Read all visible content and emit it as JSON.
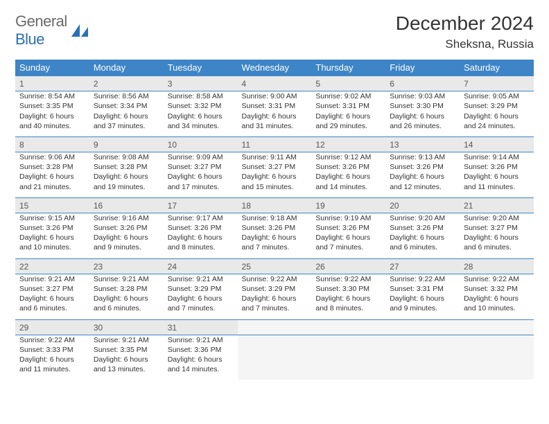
{
  "logo": {
    "text1": "General",
    "text2": "Blue",
    "shape_color": "#2a6fb5"
  },
  "title": "December 2024",
  "location": "Sheksna, Russia",
  "colors": {
    "header_bg": "#3d85c6",
    "header_text": "#ffffff",
    "daynum_bg": "#e9e9e9",
    "border": "#3d85c6",
    "empty_bg": "#f5f5f5"
  },
  "day_headers": [
    "Sunday",
    "Monday",
    "Tuesday",
    "Wednesday",
    "Thursday",
    "Friday",
    "Saturday"
  ],
  "weeks": [
    [
      {
        "n": "1",
        "sunrise": "8:54 AM",
        "sunset": "3:35 PM",
        "dl1": "Daylight: 6 hours",
        "dl2": "and 40 minutes."
      },
      {
        "n": "2",
        "sunrise": "8:56 AM",
        "sunset": "3:34 PM",
        "dl1": "Daylight: 6 hours",
        "dl2": "and 37 minutes."
      },
      {
        "n": "3",
        "sunrise": "8:58 AM",
        "sunset": "3:32 PM",
        "dl1": "Daylight: 6 hours",
        "dl2": "and 34 minutes."
      },
      {
        "n": "4",
        "sunrise": "9:00 AM",
        "sunset": "3:31 PM",
        "dl1": "Daylight: 6 hours",
        "dl2": "and 31 minutes."
      },
      {
        "n": "5",
        "sunrise": "9:02 AM",
        "sunset": "3:31 PM",
        "dl1": "Daylight: 6 hours",
        "dl2": "and 29 minutes."
      },
      {
        "n": "6",
        "sunrise": "9:03 AM",
        "sunset": "3:30 PM",
        "dl1": "Daylight: 6 hours",
        "dl2": "and 26 minutes."
      },
      {
        "n": "7",
        "sunrise": "9:05 AM",
        "sunset": "3:29 PM",
        "dl1": "Daylight: 6 hours",
        "dl2": "and 24 minutes."
      }
    ],
    [
      {
        "n": "8",
        "sunrise": "9:06 AM",
        "sunset": "3:28 PM",
        "dl1": "Daylight: 6 hours",
        "dl2": "and 21 minutes."
      },
      {
        "n": "9",
        "sunrise": "9:08 AM",
        "sunset": "3:28 PM",
        "dl1": "Daylight: 6 hours",
        "dl2": "and 19 minutes."
      },
      {
        "n": "10",
        "sunrise": "9:09 AM",
        "sunset": "3:27 PM",
        "dl1": "Daylight: 6 hours",
        "dl2": "and 17 minutes."
      },
      {
        "n": "11",
        "sunrise": "9:11 AM",
        "sunset": "3:27 PM",
        "dl1": "Daylight: 6 hours",
        "dl2": "and 15 minutes."
      },
      {
        "n": "12",
        "sunrise": "9:12 AM",
        "sunset": "3:26 PM",
        "dl1": "Daylight: 6 hours",
        "dl2": "and 14 minutes."
      },
      {
        "n": "13",
        "sunrise": "9:13 AM",
        "sunset": "3:26 PM",
        "dl1": "Daylight: 6 hours",
        "dl2": "and 12 minutes."
      },
      {
        "n": "14",
        "sunrise": "9:14 AM",
        "sunset": "3:26 PM",
        "dl1": "Daylight: 6 hours",
        "dl2": "and 11 minutes."
      }
    ],
    [
      {
        "n": "15",
        "sunrise": "9:15 AM",
        "sunset": "3:26 PM",
        "dl1": "Daylight: 6 hours",
        "dl2": "and 10 minutes."
      },
      {
        "n": "16",
        "sunrise": "9:16 AM",
        "sunset": "3:26 PM",
        "dl1": "Daylight: 6 hours",
        "dl2": "and 9 minutes."
      },
      {
        "n": "17",
        "sunrise": "9:17 AM",
        "sunset": "3:26 PM",
        "dl1": "Daylight: 6 hours",
        "dl2": "and 8 minutes."
      },
      {
        "n": "18",
        "sunrise": "9:18 AM",
        "sunset": "3:26 PM",
        "dl1": "Daylight: 6 hours",
        "dl2": "and 7 minutes."
      },
      {
        "n": "19",
        "sunrise": "9:19 AM",
        "sunset": "3:26 PM",
        "dl1": "Daylight: 6 hours",
        "dl2": "and 7 minutes."
      },
      {
        "n": "20",
        "sunrise": "9:20 AM",
        "sunset": "3:26 PM",
        "dl1": "Daylight: 6 hours",
        "dl2": "and 6 minutes."
      },
      {
        "n": "21",
        "sunrise": "9:20 AM",
        "sunset": "3:27 PM",
        "dl1": "Daylight: 6 hours",
        "dl2": "and 6 minutes."
      }
    ],
    [
      {
        "n": "22",
        "sunrise": "9:21 AM",
        "sunset": "3:27 PM",
        "dl1": "Daylight: 6 hours",
        "dl2": "and 6 minutes."
      },
      {
        "n": "23",
        "sunrise": "9:21 AM",
        "sunset": "3:28 PM",
        "dl1": "Daylight: 6 hours",
        "dl2": "and 6 minutes."
      },
      {
        "n": "24",
        "sunrise": "9:21 AM",
        "sunset": "3:29 PM",
        "dl1": "Daylight: 6 hours",
        "dl2": "and 7 minutes."
      },
      {
        "n": "25",
        "sunrise": "9:22 AM",
        "sunset": "3:29 PM",
        "dl1": "Daylight: 6 hours",
        "dl2": "and 7 minutes."
      },
      {
        "n": "26",
        "sunrise": "9:22 AM",
        "sunset": "3:30 PM",
        "dl1": "Daylight: 6 hours",
        "dl2": "and 8 minutes."
      },
      {
        "n": "27",
        "sunrise": "9:22 AM",
        "sunset": "3:31 PM",
        "dl1": "Daylight: 6 hours",
        "dl2": "and 9 minutes."
      },
      {
        "n": "28",
        "sunrise": "9:22 AM",
        "sunset": "3:32 PM",
        "dl1": "Daylight: 6 hours",
        "dl2": "and 10 minutes."
      }
    ],
    [
      {
        "n": "29",
        "sunrise": "9:22 AM",
        "sunset": "3:33 PM",
        "dl1": "Daylight: 6 hours",
        "dl2": "and 11 minutes."
      },
      {
        "n": "30",
        "sunrise": "9:21 AM",
        "sunset": "3:35 PM",
        "dl1": "Daylight: 6 hours",
        "dl2": "and 13 minutes."
      },
      {
        "n": "31",
        "sunrise": "9:21 AM",
        "sunset": "3:36 PM",
        "dl1": "Daylight: 6 hours",
        "dl2": "and 14 minutes."
      },
      null,
      null,
      null,
      null
    ]
  ],
  "labels": {
    "sunrise": "Sunrise: ",
    "sunset": "Sunset: "
  }
}
